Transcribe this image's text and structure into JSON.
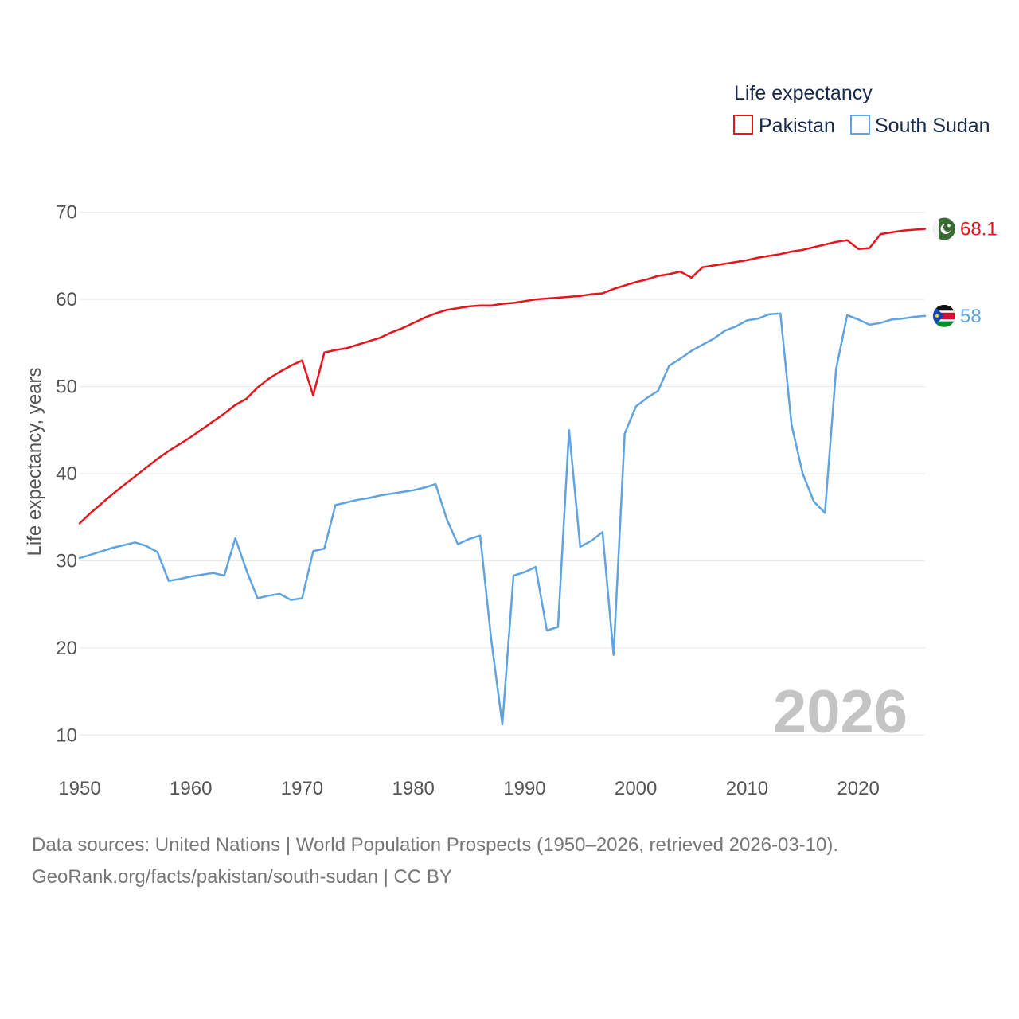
{
  "chart_data": {
    "type": "line",
    "ylabel": "Life expectancy, years",
    "xlabel": "",
    "xlim": [
      1950,
      2026
    ],
    "ylim": [
      5,
      75
    ],
    "yticks": [
      10,
      20,
      30,
      40,
      50,
      60,
      70
    ],
    "xticks": [
      1950,
      1960,
      1970,
      1980,
      1990,
      2000,
      2010,
      2020
    ],
    "ytick_labels": [
      "10",
      "20",
      "30",
      "40",
      "50",
      "60",
      "70"
    ],
    "xtick_labels": [
      "1950",
      "1960",
      "1970",
      "1980",
      "1990",
      "2000",
      "2010",
      "2020"
    ],
    "grid": true,
    "year_label": "2026",
    "legend": {
      "title": "Life expectancy",
      "position": "top-right",
      "entries": [
        "Pakistan",
        "South Sudan"
      ]
    },
    "series": [
      {
        "name": "Pakistan",
        "color": "#e8141c",
        "end_label": "68.1",
        "flag": "pakistan-flag-icon",
        "x": [
          1950,
          1951,
          1952,
          1953,
          1954,
          1955,
          1956,
          1957,
          1958,
          1959,
          1960,
          1961,
          1962,
          1963,
          1964,
          1965,
          1966,
          1967,
          1968,
          1969,
          1970,
          1971,
          1972,
          1973,
          1974,
          1975,
          1976,
          1977,
          1978,
          1979,
          1980,
          1981,
          1982,
          1983,
          1984,
          1985,
          1986,
          1987,
          1988,
          1989,
          1990,
          1991,
          1992,
          1993,
          1994,
          1995,
          1996,
          1997,
          1998,
          1999,
          2000,
          2001,
          2002,
          2003,
          2004,
          2005,
          2006,
          2007,
          2008,
          2009,
          2010,
          2011,
          2012,
          2013,
          2014,
          2015,
          2016,
          2017,
          2018,
          2019,
          2020,
          2021,
          2022,
          2023,
          2024,
          2025,
          2026
        ],
        "values": [
          34.3,
          35.5,
          36.6,
          37.7,
          38.7,
          39.7,
          40.7,
          41.7,
          42.6,
          43.4,
          44.2,
          45.1,
          46.0,
          46.9,
          47.9,
          48.6,
          49.9,
          50.9,
          51.7,
          52.4,
          53.0,
          49.0,
          53.9,
          54.2,
          54.4,
          54.8,
          55.2,
          55.6,
          56.2,
          56.7,
          57.3,
          57.9,
          58.4,
          58.8,
          59.0,
          59.2,
          59.3,
          59.3,
          59.5,
          59.6,
          59.8,
          60.0,
          60.1,
          60.2,
          60.3,
          60.4,
          60.6,
          60.7,
          61.2,
          61.6,
          62.0,
          62.3,
          62.7,
          62.9,
          63.2,
          62.5,
          63.7,
          63.9,
          64.1,
          64.3,
          64.5,
          64.8,
          65.0,
          65.2,
          65.5,
          65.7,
          66.0,
          66.3,
          66.6,
          66.8,
          65.8,
          65.9,
          67.5,
          67.7,
          67.9,
          68.0,
          68.1
        ]
      },
      {
        "name": "South Sudan",
        "color": "#5fa3e0",
        "end_label": "58",
        "flag": "south-sudan-flag-icon",
        "x": [
          1950,
          1951,
          1952,
          1953,
          1954,
          1955,
          1956,
          1957,
          1958,
          1959,
          1960,
          1961,
          1962,
          1963,
          1964,
          1965,
          1966,
          1967,
          1968,
          1969,
          1970,
          1971,
          1972,
          1973,
          1974,
          1975,
          1976,
          1977,
          1978,
          1979,
          1980,
          1981,
          1982,
          1983,
          1984,
          1985,
          1986,
          1987,
          1988,
          1989,
          1990,
          1991,
          1992,
          1993,
          1994,
          1995,
          1996,
          1997,
          1998,
          1999,
          2000,
          2001,
          2002,
          2003,
          2004,
          2005,
          2006,
          2007,
          2008,
          2009,
          2010,
          2011,
          2012,
          2013,
          2014,
          2015,
          2016,
          2017,
          2018,
          2019,
          2020,
          2021,
          2022,
          2023,
          2024,
          2025,
          2026
        ],
        "values": [
          30.3,
          30.7,
          31.1,
          31.5,
          31.8,
          32.1,
          31.7,
          31.0,
          27.7,
          27.9,
          28.2,
          28.4,
          28.6,
          28.3,
          32.6,
          28.9,
          25.7,
          26.0,
          26.2,
          25.5,
          25.7,
          31.1,
          31.4,
          36.4,
          36.7,
          37.0,
          37.2,
          37.5,
          37.7,
          37.9,
          38.1,
          38.4,
          38.8,
          34.8,
          31.9,
          32.5,
          32.9,
          21.0,
          11.2,
          28.3,
          28.7,
          29.3,
          22.0,
          22.4,
          45.0,
          31.6,
          32.3,
          33.3,
          19.2,
          44.6,
          47.7,
          48.7,
          49.5,
          52.4,
          53.2,
          54.1,
          54.8,
          55.5,
          56.4,
          56.9,
          57.6,
          57.8,
          58.3,
          58.4,
          45.6,
          40.0,
          36.8,
          35.5,
          52.0,
          58.2,
          57.7,
          57.1,
          57.3,
          57.7,
          57.8,
          58.0,
          58.1
        ]
      }
    ]
  },
  "source": {
    "line1": "Data sources: United Nations | World Population Prospects (1950–2026, retrieved 2026-03-10).",
    "line2": "GeoRank.org/facts/pakistan/south-sudan | CC BY"
  }
}
